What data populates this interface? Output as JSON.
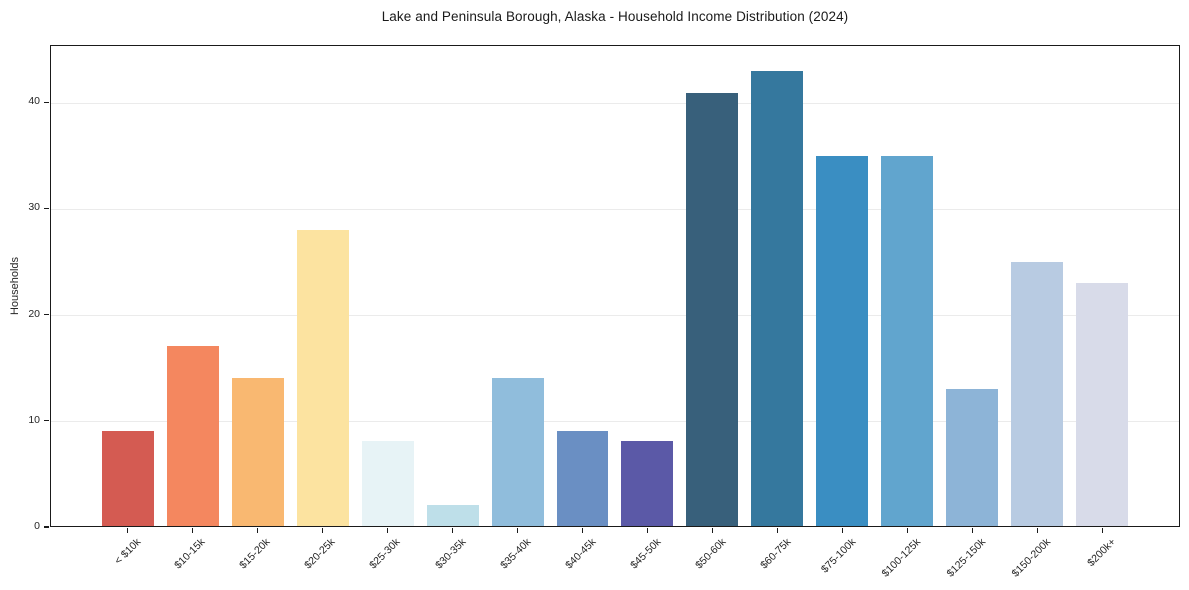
{
  "chart_data": {
    "type": "bar",
    "title": "Lake and Peninsula Borough, Alaska - Household Income Distribution (2024)",
    "xlabel": "",
    "ylabel": "Households",
    "categories": [
      "< $10k",
      "$10-15k",
      "$15-20k",
      "$20-25k",
      "$25-30k",
      "$30-35k",
      "$35-40k",
      "$40-45k",
      "$45-50k",
      "$50-60k",
      "$60-75k",
      "$75-100k",
      "$100-125k",
      "$125-150k",
      "$150-200k",
      "$200k+"
    ],
    "values": [
      9,
      17,
      14,
      28,
      8,
      2,
      14,
      9,
      8,
      41,
      43,
      35,
      35,
      13,
      25,
      23
    ],
    "bar_colors": [
      "#d45b52",
      "#f4875f",
      "#f9b871",
      "#fce3a0",
      "#e7f3f6",
      "#bedfe9",
      "#90bddc",
      "#6a8fc3",
      "#5b59a7",
      "#38607b",
      "#35789e",
      "#3a8ec2",
      "#61a5ce",
      "#8db4d7",
      "#b8cbe2",
      "#d8dbe9"
    ],
    "yticks": [
      0,
      10,
      20,
      30,
      40
    ],
    "ylim": [
      0,
      45.4
    ],
    "grid": "horizontal",
    "legend": "none",
    "background_color": "#ffffff",
    "spine_color": "#1a1a1a",
    "gridline_color": "#ebebeb"
  }
}
